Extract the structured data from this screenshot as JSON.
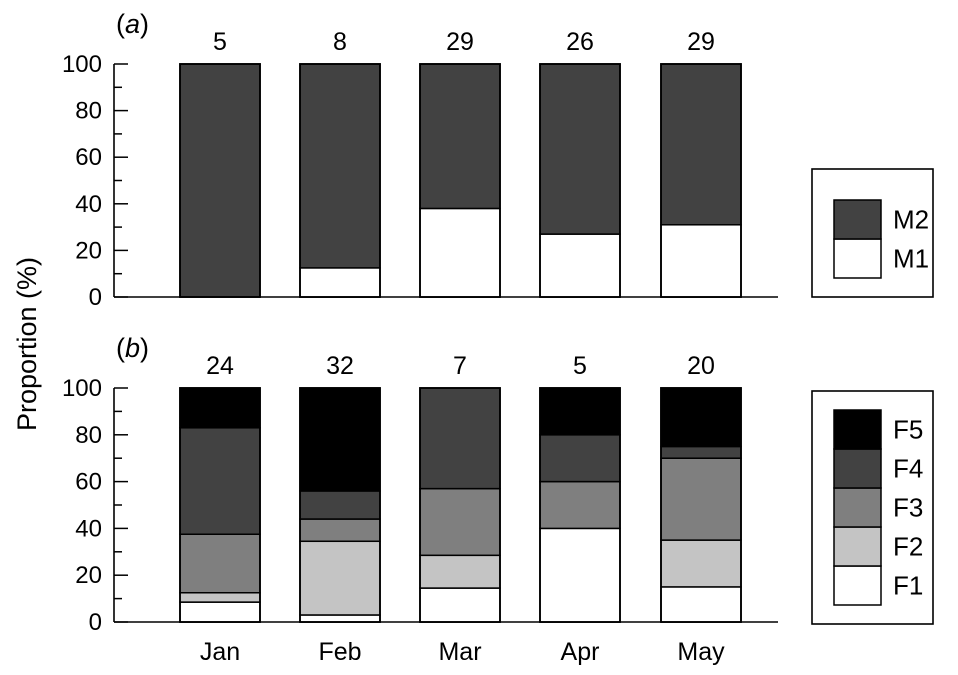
{
  "ylabel": "Proportion (%)",
  "colors": {
    "M1": "#ffffff",
    "M2": "#424242",
    "F1": "#ffffff",
    "F2": "#c4c4c4",
    "F3": "#7f7f7f",
    "F4": "#424242",
    "F5": "#000000"
  },
  "chart_data": [
    {
      "type": "bar",
      "stacked": true,
      "panel_label": "(a)",
      "categories": [
        "Jan",
        "Feb",
        "Mar",
        "Apr",
        "May"
      ],
      "counts": [
        "5",
        "8",
        "29",
        "26",
        "29"
      ],
      "ylabel": "Proportion (%)",
      "ylim": [
        0,
        100
      ],
      "yticks": [
        "0",
        "20",
        "40",
        "60",
        "80",
        "100"
      ],
      "legend": "right",
      "series": [
        {
          "name": "M1",
          "values": [
            0,
            12.5,
            38,
            27,
            31
          ]
        },
        {
          "name": "M2",
          "values": [
            100,
            87.5,
            62,
            73,
            69
          ]
        }
      ]
    },
    {
      "type": "bar",
      "stacked": true,
      "panel_label": "(b)",
      "categories": [
        "Jan",
        "Feb",
        "Mar",
        "Apr",
        "May"
      ],
      "counts": [
        "24",
        "32",
        "7",
        "5",
        "20"
      ],
      "ylabel": "Proportion (%)",
      "ylim": [
        0,
        100
      ],
      "yticks": [
        "0",
        "20",
        "40",
        "60",
        "80",
        "100"
      ],
      "legend": "right",
      "series": [
        {
          "name": "F1",
          "values": [
            8.5,
            3,
            14.5,
            40,
            15
          ]
        },
        {
          "name": "F2",
          "values": [
            4,
            31.5,
            14,
            0,
            20
          ]
        },
        {
          "name": "F3",
          "values": [
            25,
            9.5,
            28.5,
            20,
            35
          ]
        },
        {
          "name": "F4",
          "values": [
            45.5,
            12,
            43,
            20,
            5
          ]
        },
        {
          "name": "F5",
          "values": [
            17,
            44,
            0,
            20,
            25
          ]
        }
      ]
    }
  ]
}
